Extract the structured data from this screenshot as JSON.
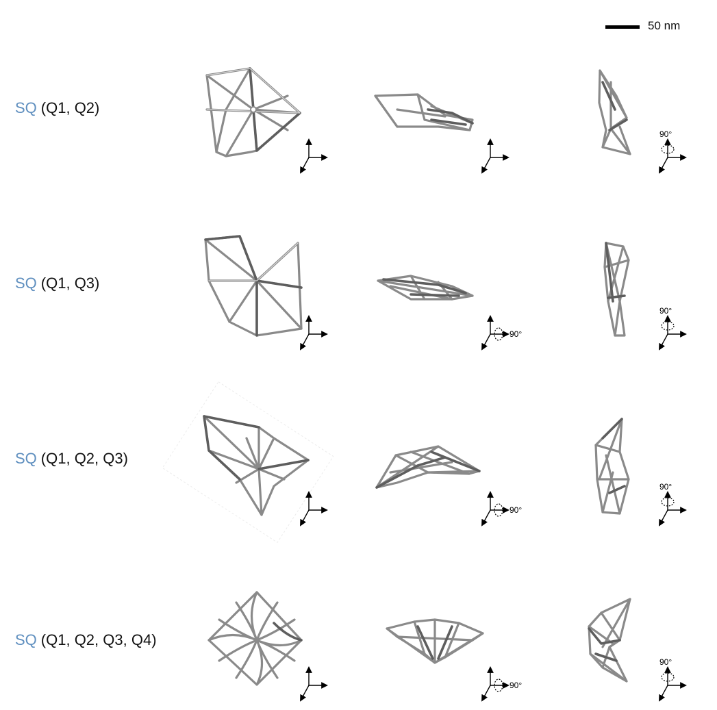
{
  "scale_bar": {
    "label": "50 nm"
  },
  "rows": [
    {
      "prefix": "SQ",
      "suffix": "(Q1, Q2)",
      "views": [
        {
          "rotation": ""
        },
        {
          "rotation": ""
        },
        {
          "rotation": "90°"
        }
      ]
    },
    {
      "prefix": "SQ",
      "suffix": "(Q1, Q3)",
      "views": [
        {
          "rotation": ""
        },
        {
          "rotation": "90°"
        },
        {
          "rotation": "90°"
        }
      ]
    },
    {
      "prefix": "SQ",
      "suffix": "(Q1, Q2, Q3)",
      "views": [
        {
          "rotation": ""
        },
        {
          "rotation": "90°"
        },
        {
          "rotation": "90°"
        }
      ]
    },
    {
      "prefix": "SQ",
      "suffix": "(Q1, Q2, Q3, Q4)",
      "views": [
        {
          "rotation": ""
        },
        {
          "rotation": "90°"
        },
        {
          "rotation": "90°"
        }
      ]
    }
  ],
  "colors": {
    "prefix": "#5f8fbf",
    "frame": "#8a8a8a"
  }
}
